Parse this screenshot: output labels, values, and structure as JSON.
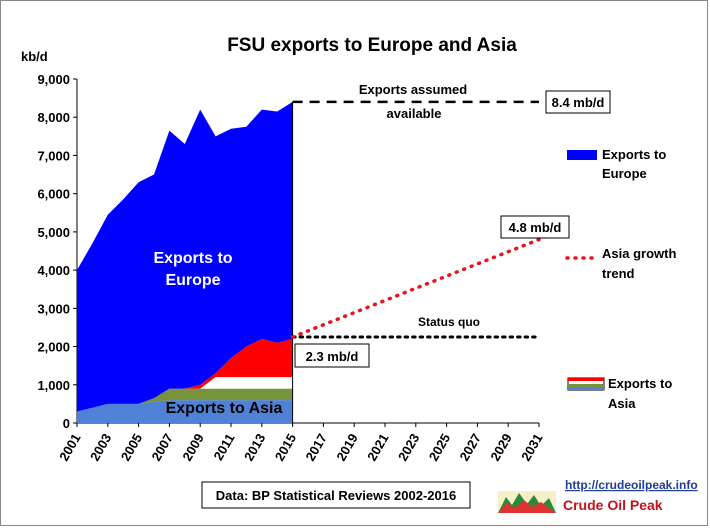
{
  "chart_data": {
    "type": "area",
    "title": "FSU exports to Europe and Asia",
    "ylabel": "kb/d",
    "ylim": [
      0,
      9000
    ],
    "yticks": [
      "0",
      "1,000",
      "2,000",
      "3,000",
      "4,000",
      "5,000",
      "6,000",
      "7,000",
      "8,000",
      "9,000"
    ],
    "xlim": [
      2001,
      2031
    ],
    "xticks": [
      "2001",
      "2003",
      "2005",
      "2007",
      "2009",
      "2011",
      "2013",
      "2015",
      "2017",
      "2019",
      "2021",
      "2023",
      "2025",
      "2027",
      "2029",
      "2031"
    ],
    "x": [
      2001,
      2002,
      2003,
      2004,
      2005,
      2006,
      2007,
      2008,
      2009,
      2010,
      2011,
      2012,
      2013,
      2014,
      2015
    ],
    "asia_layers": {
      "blue": [
        300,
        400,
        500,
        500,
        500,
        550,
        600,
        600,
        600,
        600,
        600,
        600,
        600,
        600,
        600
      ],
      "green": [
        0,
        0,
        0,
        0,
        0,
        100,
        300,
        300,
        300,
        300,
        300,
        300,
        300,
        300,
        300
      ],
      "white": [
        0,
        0,
        0,
        0,
        0,
        0,
        0,
        0,
        0,
        300,
        300,
        300,
        300,
        300,
        300
      ],
      "red": [
        0,
        0,
        0,
        0,
        0,
        0,
        0,
        0,
        100,
        100,
        500,
        800,
        1000,
        900,
        1000
      ]
    },
    "total_exports": [
      4000,
      4700,
      5450,
      5850,
      6300,
      6500,
      7650,
      7300,
      8200,
      7500,
      7700,
      7750,
      8200,
      8150,
      8400
    ],
    "europe_color": "#0000ff",
    "asia_colors": {
      "blue": "#4f81d6",
      "green": "#77933c",
      "white": "#ffffff",
      "red": "#ff0000"
    },
    "europe_line": {
      "x": [
        2015,
        2031
      ],
      "y": 8400,
      "label": "8.4 mb/d",
      "note_top": "Exports assumed",
      "note_bottom": "available"
    },
    "status_quo": {
      "x": [
        2015,
        2031
      ],
      "y": 2250,
      "label": "2.3 mb/d",
      "note": "Status quo"
    },
    "asia_trend": {
      "x": [
        2015,
        2031
      ],
      "y": [
        2250,
        4800
      ],
      "color": "#e8141c",
      "label": "4.8 mb/d"
    },
    "inside_labels": {
      "europe": [
        "Exports to",
        "Europe"
      ],
      "asia": "Exports to Asia"
    },
    "legend": [
      {
        "name": "Exports to Europe",
        "lines": [
          "Exports to",
          "Europe"
        ],
        "kind": "area-blue"
      },
      {
        "name": "Asia growth trend",
        "lines": [
          "Asia growth",
          "trend"
        ],
        "kind": "dotted-red"
      },
      {
        "name": "Exports to Asia",
        "lines": [
          "Exports to",
          "Asia"
        ],
        "kind": "striped"
      }
    ],
    "source": "Data: BP Statistical Reviews 2002-2016",
    "credit": {
      "url": "http://crudeoilpeak.info",
      "name": "Crude Oil Peak"
    }
  }
}
